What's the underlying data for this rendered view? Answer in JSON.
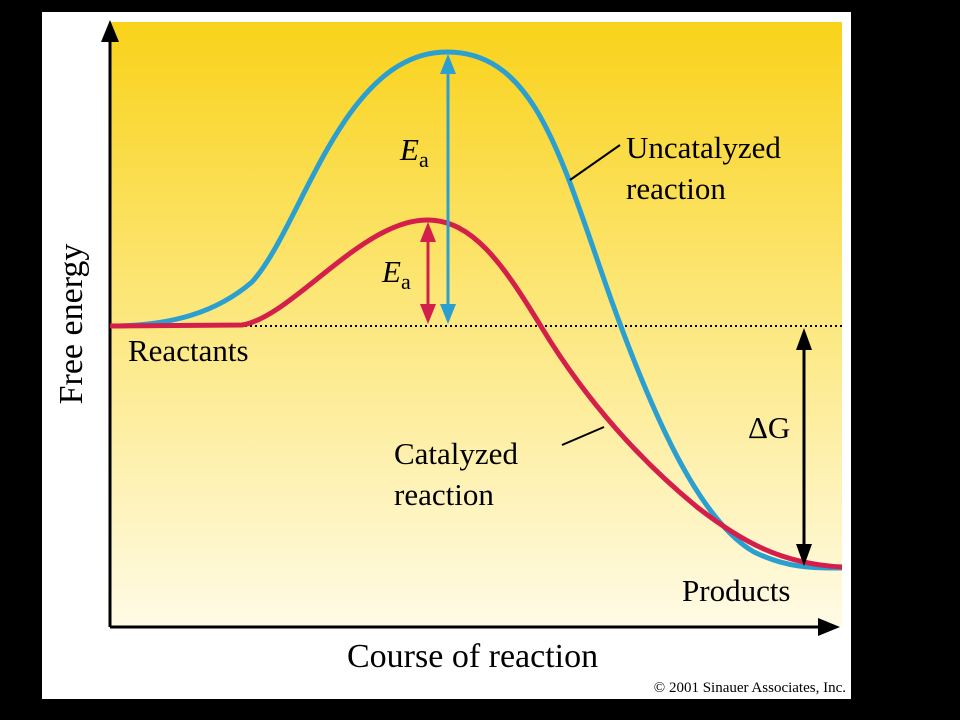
{
  "diagram": {
    "y_axis_label": "Free energy",
    "x_axis_label": "Course of reaction",
    "labels": {
      "reactants": "Reactants",
      "products": "Products",
      "uncatalyzed_line1": "Uncatalyzed",
      "uncatalyzed_line2": "reaction",
      "catalyzed_line1": "Catalyzed",
      "catalyzed_line2": "reaction",
      "delta_g": "ΔG",
      "ea_uncatalyzed_main": "E",
      "ea_uncatalyzed_sub": "a",
      "ea_catalyzed_main": "E",
      "ea_catalyzed_sub": "a"
    },
    "copyright": "© 2001 Sinauer Associates, Inc.",
    "colors": {
      "uncatalyzed": "#2b9fd0",
      "catalyzed": "#d41f4a",
      "background_top": "#f9d21a",
      "background_bottom": "#fffbe6",
      "frame": "#000000"
    }
  }
}
